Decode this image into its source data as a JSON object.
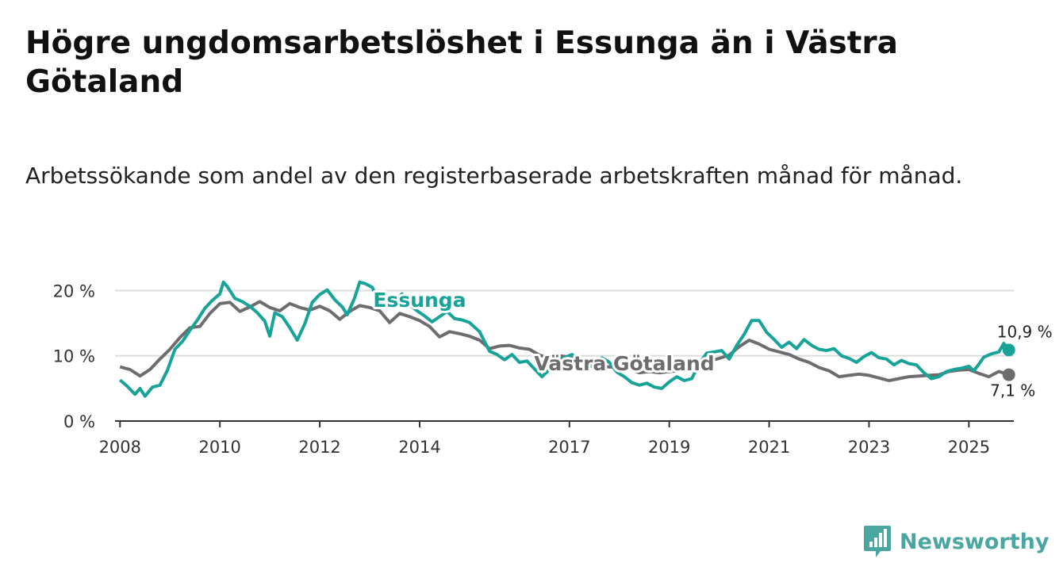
{
  "title": "Högre ungdomsarbetslöshet i Essunga än i Västra Götaland",
  "subtitle": "Arbetssökande som andel av den registerbaserade arbetskraften månad för månad.",
  "brand": {
    "name": "Newsworthy",
    "icon": "newsworthy-logo-icon",
    "color": "#4aa6a0"
  },
  "colors": {
    "essunga": "#17a398",
    "vastra": "#6f6c70",
    "grid": "#dddddd",
    "axis": "#333333"
  },
  "chart_data": {
    "type": "line",
    "title": "",
    "xlabel": "",
    "ylabel": "",
    "ylim": [
      0,
      22
    ],
    "xlim": [
      2007.9,
      2025.9
    ],
    "y_ticks": [
      {
        "value": 0,
        "label": "0 %"
      },
      {
        "value": 10,
        "label": "10 %"
      },
      {
        "value": 20,
        "label": "20 %"
      }
    ],
    "x_ticks": [
      {
        "value": 2008,
        "label": "2008"
      },
      {
        "value": 2010,
        "label": "2010"
      },
      {
        "value": 2012,
        "label": "2012"
      },
      {
        "value": 2014,
        "label": "2014"
      },
      {
        "value": 2017,
        "label": "2017"
      },
      {
        "value": 2019,
        "label": "2019"
      },
      {
        "value": 2021,
        "label": "2021"
      },
      {
        "value": 2023,
        "label": "2023"
      },
      {
        "value": 2025,
        "label": "2025"
      }
    ],
    "series": [
      {
        "name": "Västra Götaland",
        "color": "#6f6c70",
        "end_label": "7,1 %",
        "points": [
          [
            2008.0,
            8.3
          ],
          [
            2008.2,
            7.9
          ],
          [
            2008.4,
            6.9
          ],
          [
            2008.6,
            7.9
          ],
          [
            2008.8,
            9.5
          ],
          [
            2009.0,
            11.0
          ],
          [
            2009.2,
            12.8
          ],
          [
            2009.4,
            14.3
          ],
          [
            2009.6,
            14.5
          ],
          [
            2009.8,
            16.5
          ],
          [
            2010.0,
            18.0
          ],
          [
            2010.2,
            18.2
          ],
          [
            2010.4,
            16.8
          ],
          [
            2010.6,
            17.5
          ],
          [
            2010.8,
            18.3
          ],
          [
            2011.0,
            17.4
          ],
          [
            2011.2,
            16.9
          ],
          [
            2011.4,
            18.0
          ],
          [
            2011.6,
            17.4
          ],
          [
            2011.8,
            17.0
          ],
          [
            2012.0,
            17.6
          ],
          [
            2012.2,
            16.9
          ],
          [
            2012.4,
            15.6
          ],
          [
            2012.6,
            16.8
          ],
          [
            2012.8,
            17.7
          ],
          [
            2013.0,
            17.4
          ],
          [
            2013.2,
            16.9
          ],
          [
            2013.4,
            15.1
          ],
          [
            2013.6,
            16.5
          ],
          [
            2013.8,
            16.0
          ],
          [
            2014.0,
            15.4
          ],
          [
            2014.2,
            14.5
          ],
          [
            2014.4,
            12.9
          ],
          [
            2014.6,
            13.7
          ],
          [
            2014.8,
            13.4
          ],
          [
            2015.0,
            13.0
          ],
          [
            2015.2,
            12.4
          ],
          [
            2015.4,
            11.1
          ],
          [
            2015.6,
            11.5
          ],
          [
            2015.8,
            11.6
          ],
          [
            2016.0,
            11.2
          ],
          [
            2016.2,
            11.0
          ],
          [
            2016.4,
            10.1
          ],
          [
            2016.6,
            9.7
          ],
          [
            2016.8,
            10.0
          ],
          [
            2017.0,
            9.8
          ],
          [
            2017.2,
            9.4
          ],
          [
            2017.4,
            8.8
          ],
          [
            2017.6,
            8.4
          ],
          [
            2017.8,
            8.3
          ],
          [
            2018.0,
            8.2
          ],
          [
            2018.2,
            8.0
          ],
          [
            2018.4,
            7.4
          ],
          [
            2018.6,
            7.6
          ],
          [
            2018.8,
            7.4
          ],
          [
            2019.0,
            7.6
          ],
          [
            2019.2,
            7.7
          ],
          [
            2019.4,
            8.0
          ],
          [
            2019.6,
            8.8
          ],
          [
            2019.8,
            9.2
          ],
          [
            2020.0,
            9.6
          ],
          [
            2020.2,
            10.1
          ],
          [
            2020.4,
            11.4
          ],
          [
            2020.6,
            12.4
          ],
          [
            2020.8,
            11.8
          ],
          [
            2021.0,
            11.0
          ],
          [
            2021.2,
            10.6
          ],
          [
            2021.4,
            10.2
          ],
          [
            2021.6,
            9.5
          ],
          [
            2021.8,
            9.0
          ],
          [
            2022.0,
            8.2
          ],
          [
            2022.2,
            7.7
          ],
          [
            2022.4,
            6.8
          ],
          [
            2022.6,
            7.0
          ],
          [
            2022.8,
            7.2
          ],
          [
            2023.0,
            7.0
          ],
          [
            2023.2,
            6.6
          ],
          [
            2023.4,
            6.2
          ],
          [
            2023.6,
            6.5
          ],
          [
            2023.8,
            6.8
          ],
          [
            2024.0,
            6.9
          ],
          [
            2024.2,
            7.0
          ],
          [
            2024.4,
            7.1
          ],
          [
            2024.6,
            7.6
          ],
          [
            2024.8,
            7.8
          ],
          [
            2025.0,
            7.9
          ],
          [
            2025.2,
            7.3
          ],
          [
            2025.4,
            6.8
          ],
          [
            2025.6,
            7.6
          ],
          [
            2025.8,
            7.1
          ]
        ]
      },
      {
        "name": "Essunga",
        "color": "#17a398",
        "end_label": "10,9 %",
        "points": [
          [
            2008.0,
            6.3
          ],
          [
            2008.15,
            5.3
          ],
          [
            2008.3,
            4.1
          ],
          [
            2008.4,
            5.0
          ],
          [
            2008.5,
            3.8
          ],
          [
            2008.65,
            5.2
          ],
          [
            2008.8,
            5.5
          ],
          [
            2008.95,
            7.8
          ],
          [
            2009.1,
            11.0
          ],
          [
            2009.25,
            12.2
          ],
          [
            2009.4,
            13.9
          ],
          [
            2009.55,
            15.5
          ],
          [
            2009.7,
            17.3
          ],
          [
            2009.85,
            18.5
          ],
          [
            2010.0,
            19.5
          ],
          [
            2010.07,
            21.3
          ],
          [
            2010.15,
            20.6
          ],
          [
            2010.3,
            18.8
          ],
          [
            2010.45,
            18.3
          ],
          [
            2010.6,
            17.6
          ],
          [
            2010.75,
            16.6
          ],
          [
            2010.9,
            15.3
          ],
          [
            2011.0,
            13.0
          ],
          [
            2011.1,
            16.6
          ],
          [
            2011.25,
            16.0
          ],
          [
            2011.4,
            14.3
          ],
          [
            2011.55,
            12.4
          ],
          [
            2011.7,
            14.9
          ],
          [
            2011.85,
            18.2
          ],
          [
            2012.0,
            19.4
          ],
          [
            2012.15,
            20.1
          ],
          [
            2012.3,
            18.6
          ],
          [
            2012.45,
            17.5
          ],
          [
            2012.55,
            16.3
          ],
          [
            2012.7,
            18.9
          ],
          [
            2012.8,
            21.3
          ],
          [
            2012.9,
            21.1
          ],
          [
            2013.05,
            20.5
          ],
          [
            2013.2,
            18.0
          ],
          [
            2013.35,
            17.5
          ],
          [
            2013.5,
            18.4
          ],
          [
            2013.65,
            19.5
          ],
          [
            2013.8,
            17.8
          ],
          [
            2013.95,
            16.9
          ],
          [
            2014.1,
            16.1
          ],
          [
            2014.25,
            15.2
          ],
          [
            2014.4,
            16.0
          ],
          [
            2014.55,
            16.8
          ],
          [
            2014.7,
            15.7
          ],
          [
            2014.85,
            15.5
          ],
          [
            2015.0,
            15.1
          ],
          [
            2015.2,
            13.7
          ],
          [
            2015.4,
            10.7
          ],
          [
            2015.55,
            10.2
          ],
          [
            2015.7,
            9.4
          ],
          [
            2015.85,
            10.2
          ],
          [
            2016.0,
            9.0
          ],
          [
            2016.15,
            9.2
          ],
          [
            2016.3,
            8.0
          ],
          [
            2016.45,
            6.8
          ],
          [
            2016.6,
            7.9
          ],
          [
            2016.75,
            9.3
          ],
          [
            2016.9,
            9.7
          ],
          [
            2017.05,
            10.2
          ],
          [
            2017.2,
            9.5
          ],
          [
            2017.35,
            8.5
          ],
          [
            2017.5,
            8.3
          ],
          [
            2017.65,
            9.7
          ],
          [
            2017.8,
            9.0
          ],
          [
            2017.95,
            7.5
          ],
          [
            2018.1,
            6.8
          ],
          [
            2018.25,
            5.9
          ],
          [
            2018.4,
            5.5
          ],
          [
            2018.55,
            5.8
          ],
          [
            2018.7,
            5.2
          ],
          [
            2018.85,
            5.0
          ],
          [
            2019.0,
            6.0
          ],
          [
            2019.15,
            6.8
          ],
          [
            2019.3,
            6.2
          ],
          [
            2019.45,
            6.5
          ],
          [
            2019.6,
            8.8
          ],
          [
            2019.75,
            10.4
          ],
          [
            2019.9,
            10.6
          ],
          [
            2020.05,
            10.8
          ],
          [
            2020.2,
            9.5
          ],
          [
            2020.35,
            11.6
          ],
          [
            2020.5,
            13.3
          ],
          [
            2020.65,
            15.4
          ],
          [
            2020.8,
            15.4
          ],
          [
            2020.95,
            13.6
          ],
          [
            2021.1,
            12.5
          ],
          [
            2021.25,
            11.3
          ],
          [
            2021.4,
            12.1
          ],
          [
            2021.55,
            11.1
          ],
          [
            2021.7,
            12.5
          ],
          [
            2021.85,
            11.6
          ],
          [
            2022.0,
            11.0
          ],
          [
            2022.15,
            10.8
          ],
          [
            2022.3,
            11.1
          ],
          [
            2022.45,
            10.0
          ],
          [
            2022.6,
            9.6
          ],
          [
            2022.75,
            9.0
          ],
          [
            2022.9,
            9.9
          ],
          [
            2023.05,
            10.5
          ],
          [
            2023.2,
            9.7
          ],
          [
            2023.35,
            9.5
          ],
          [
            2023.5,
            8.6
          ],
          [
            2023.65,
            9.3
          ],
          [
            2023.8,
            8.8
          ],
          [
            2023.95,
            8.6
          ],
          [
            2024.1,
            7.4
          ],
          [
            2024.25,
            6.5
          ],
          [
            2024.4,
            6.8
          ],
          [
            2024.55,
            7.6
          ],
          [
            2024.7,
            7.9
          ],
          [
            2024.85,
            8.1
          ],
          [
            2025.0,
            8.4
          ],
          [
            2025.1,
            7.7
          ],
          [
            2025.2,
            8.7
          ],
          [
            2025.3,
            9.8
          ],
          [
            2025.45,
            10.3
          ],
          [
            2025.6,
            10.6
          ],
          [
            2025.7,
            11.9
          ],
          [
            2025.8,
            10.9
          ]
        ]
      }
    ]
  }
}
